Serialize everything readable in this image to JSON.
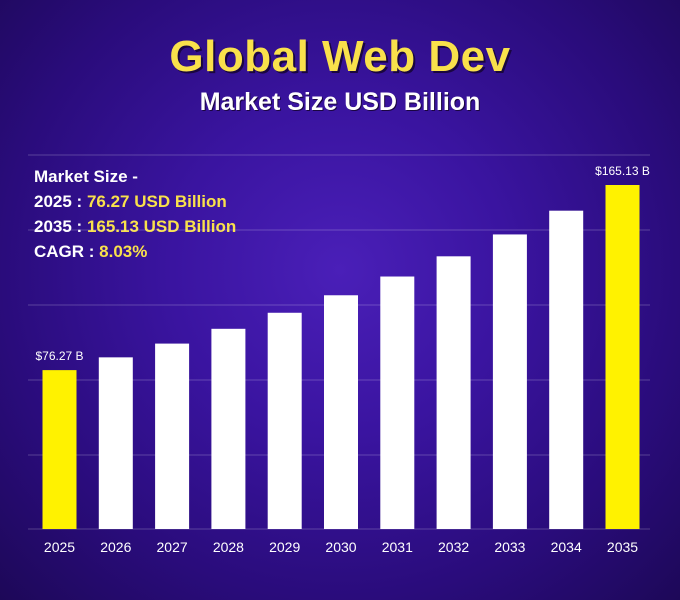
{
  "title": "Global Web Dev",
  "subtitle": "Market Size USD Billion",
  "info": {
    "heading": "Market Size -",
    "rows": [
      {
        "label": "2025 : ",
        "value": "76.27 USD Billion"
      },
      {
        "label": "2035 : ",
        "value": "165.13 USD Billion"
      },
      {
        "label": "CAGR : ",
        "value": "8.03%"
      }
    ]
  },
  "colors": {
    "highlight": "#fff200",
    "bar": "#ffffff",
    "title": "#f9e14b"
  },
  "chart_data": {
    "type": "bar",
    "categories": [
      "2025",
      "2026",
      "2027",
      "2028",
      "2029",
      "2030",
      "2031",
      "2032",
      "2033",
      "2034",
      "2035"
    ],
    "values": [
      76.27,
      82.4,
      89.0,
      96.1,
      103.8,
      112.2,
      121.2,
      130.9,
      141.4,
      152.8,
      165.13
    ],
    "highlight": [
      "2025",
      "2035"
    ],
    "data_labels": [
      {
        "category": "2025",
        "text": "$76.27 B"
      },
      {
        "category": "2035",
        "text": "$165.13 B"
      }
    ],
    "xlabel": "",
    "ylabel": "",
    "grid": true
  }
}
